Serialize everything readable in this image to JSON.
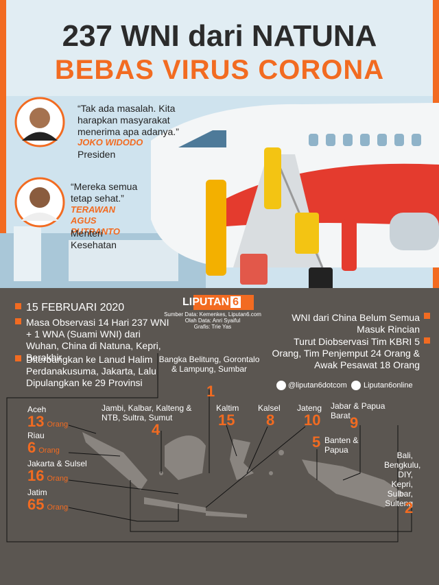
{
  "header": {
    "title": "237 WNI dari NATUNA",
    "subtitle": "BEBAS VIRUS CORONA"
  },
  "quotes": [
    {
      "text": "“Tak ada masalah. Kita harapkan masyarakat menerima apa adanya.”",
      "name": "JOKO WIDODO",
      "role": "Presiden"
    },
    {
      "text": "“Mereka semua tetap sehat.”",
      "name": "TERAWAN AGUS PUTRANTO",
      "role": "Menteri Kesehatan"
    }
  ],
  "brand": {
    "name": "LIPUTAN",
    "number": "6"
  },
  "credits": [
    "Sumber Data: Kemenkes, Liputan6.com",
    "Olah Data: Anri Syaiful",
    "Grafis: Trie Yas"
  ],
  "timeline": {
    "date": "15 FEBRUARI 2020",
    "items": [
      "Masa Observasi 14 Hari 237 WNI + 1 WNA (Suami WNI) dari Wuhan, China di Natuna, Kepri, Berakhir",
      "Diterbangkan ke Lanud Halim Perdanakusuma, Jakarta, Lalu Dipulangkan ke 29 Provinsi"
    ]
  },
  "notes": [
    "WNI dari China Belum Semua Masuk Rincian",
    "Turut Diobservasi Tim KBRI 5 Orang, Tim Penjemput 24 Orang & Awak Pesawat 18 Orang"
  ],
  "social": [
    "@liputan6dotcom",
    "Liputan6online"
  ],
  "regions": [
    {
      "label": "Aceh",
      "count": 13,
      "unit": "Orang"
    },
    {
      "label": "Riau",
      "count": 6,
      "unit": "Orang"
    },
    {
      "label": "Jakarta & Sulsel",
      "count": 16,
      "unit": "Orang"
    },
    {
      "label": "Jatim",
      "count": 65,
      "unit": "Orang"
    },
    {
      "label": "Jambi, Kalbar, Kalteng & NTB, Sultra, Sumut",
      "count": 4
    },
    {
      "label": "Bangka Belitung, Gorontalo & Lampung, Sumbar",
      "count": 1
    },
    {
      "label": "Kaltim",
      "count": 15
    },
    {
      "label": "Kalsel",
      "count": 8
    },
    {
      "label": "Jateng",
      "count": 10
    },
    {
      "label": "Jabar & Papua Barat",
      "count": 9
    },
    {
      "label": "Banten & Papua",
      "count": 5
    },
    {
      "label": "Bali, Bengkulu, DIY, Kepri, Sulbar, Sulteng",
      "count": 2
    }
  ]
}
